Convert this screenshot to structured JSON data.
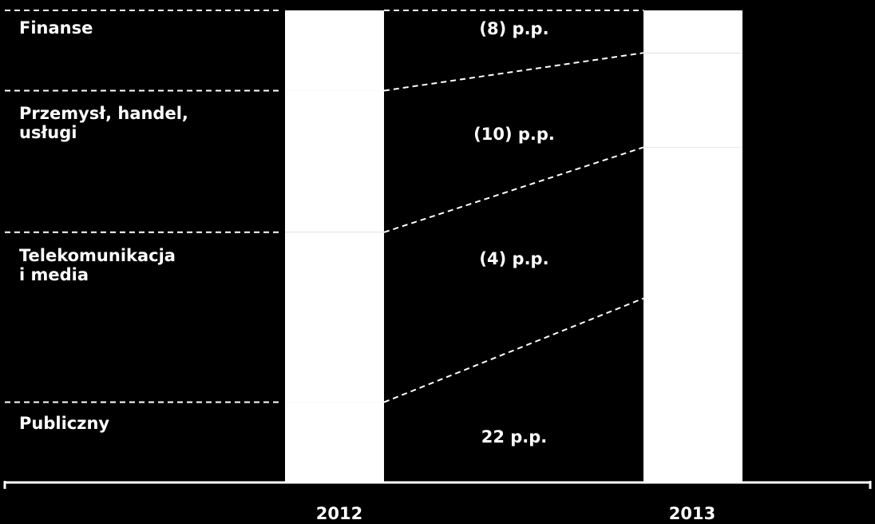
{
  "chart_data": {
    "type": "bar",
    "stacked": true,
    "categories": [
      "2012",
      "2013"
    ],
    "segments": [
      {
        "name_lines": [
          "Finanse"
        ],
        "change": "(8) p.p."
      },
      {
        "name_lines": [
          "Przemysł, handel,",
          "usługi"
        ],
        "change": "(10) p.p."
      },
      {
        "name_lines": [
          "Telekomunikacja",
          "i media"
        ],
        "change": "(4) p.p."
      },
      {
        "name_lines": [
          "Publiczny"
        ],
        "change": "22 p.p."
      }
    ],
    "series": [
      {
        "name": "Publiczny",
        "values": [
          17,
          39
        ]
      },
      {
        "name": "Telekomunikacja i media",
        "values": [
          36,
          32
        ]
      },
      {
        "name": "Przemysł, handel, usługi",
        "values": [
          30,
          20
        ]
      },
      {
        "name": "Finanse",
        "values": [
          17,
          9
        ]
      }
    ],
    "ylim": [
      0,
      100
    ],
    "grid": false,
    "legend": "left",
    "colors": {
      "background": "#000000",
      "bar": "#ffffff",
      "lines": "#ffffff"
    }
  }
}
